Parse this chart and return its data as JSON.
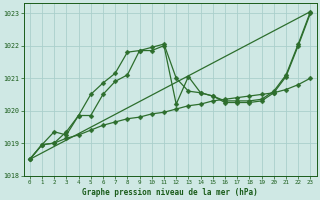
{
  "title": "Graphe pression niveau de la mer (hPa)",
  "background_color": "#cfe8e4",
  "grid_color": "#aacfcc",
  "text_color": "#1a5c1a",
  "line_color": "#2d6e2d",
  "xlim": [
    -0.5,
    23.5
  ],
  "ylim": [
    1018.0,
    1023.3
  ],
  "yticks": [
    1018,
    1019,
    1020,
    1021,
    1022,
    1023
  ],
  "xticks": [
    0,
    1,
    2,
    3,
    4,
    5,
    6,
    7,
    8,
    9,
    10,
    11,
    12,
    13,
    14,
    15,
    16,
    17,
    18,
    19,
    20,
    21,
    22,
    23
  ],
  "series1_x": [
    0,
    1,
    2,
    3,
    4,
    5,
    6,
    7,
    8,
    9,
    10,
    11,
    12,
    13,
    14,
    15,
    16,
    17,
    18,
    19,
    20,
    21,
    22,
    23
  ],
  "series1_y": [
    1018.5,
    1018.95,
    1019.0,
    1019.35,
    1019.85,
    1019.85,
    1020.5,
    1020.9,
    1021.1,
    1021.85,
    1021.95,
    1022.05,
    1021.0,
    1020.6,
    1020.55,
    1020.45,
    1020.3,
    1020.3,
    1020.3,
    1020.35,
    1020.6,
    1021.1,
    1022.05,
    1023.05
  ],
  "series2_x": [
    0,
    1,
    2,
    3,
    4,
    5,
    6,
    7,
    8,
    9,
    10,
    11,
    12,
    13,
    14,
    15,
    16,
    17,
    18,
    19,
    20,
    21,
    22,
    23
  ],
  "series2_y": [
    1018.5,
    1018.95,
    1019.35,
    1019.25,
    1019.85,
    1020.5,
    1020.85,
    1021.15,
    1021.8,
    1021.85,
    1021.85,
    1022.0,
    1020.2,
    1021.05,
    1020.55,
    1020.45,
    1020.25,
    1020.25,
    1020.25,
    1020.3,
    1020.55,
    1021.05,
    1022.0,
    1023.0
  ],
  "series3_x": [
    0,
    1,
    2,
    3,
    4,
    5,
    6,
    7,
    8,
    9,
    10,
    11,
    12,
    13,
    14,
    15,
    16,
    17,
    18,
    19,
    20,
    21,
    22,
    23
  ],
  "series3_y": [
    1018.5,
    1018.95,
    1019.0,
    1019.15,
    1019.25,
    1019.4,
    1019.55,
    1019.65,
    1019.75,
    1019.8,
    1019.9,
    1019.95,
    1020.05,
    1020.15,
    1020.2,
    1020.3,
    1020.35,
    1020.4,
    1020.45,
    1020.5,
    1020.55,
    1020.65,
    1020.8,
    1021.0
  ],
  "series4_x": [
    0,
    23
  ],
  "series4_y": [
    1018.5,
    1023.05
  ]
}
